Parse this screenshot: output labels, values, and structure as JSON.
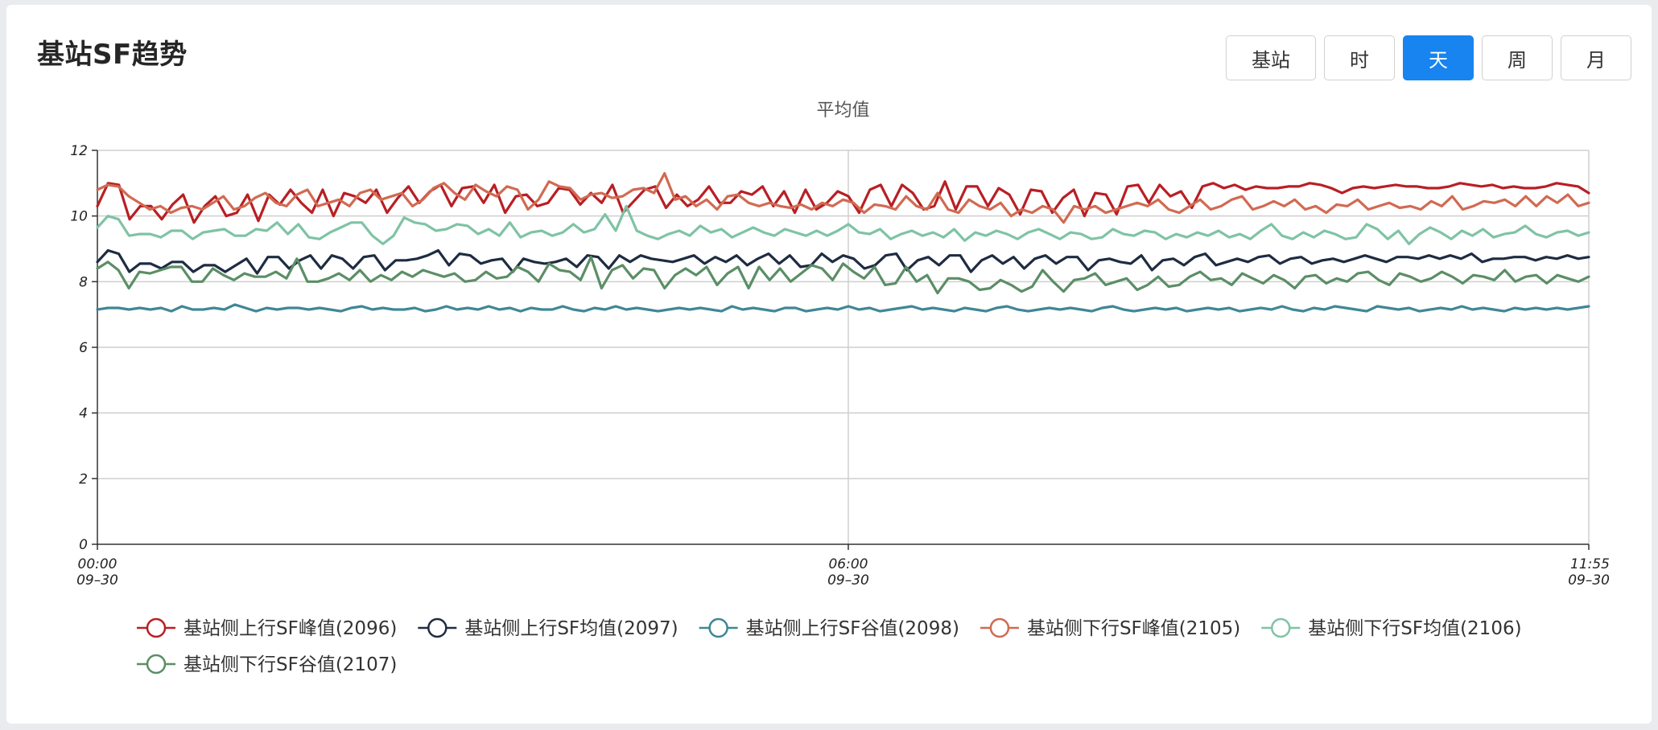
{
  "header": {
    "title": "基站SF趋势"
  },
  "toolbar": {
    "buttons": [
      {
        "label": "基站",
        "active": false
      },
      {
        "label": "时",
        "active": false
      },
      {
        "label": "天",
        "active": true
      },
      {
        "label": "周",
        "active": false
      },
      {
        "label": "月",
        "active": false
      }
    ]
  },
  "colors": {
    "accent": "#1784ef",
    "series": [
      "#b81f24",
      "#1e2c42",
      "#3f8796",
      "#d16a52",
      "#7fc3a5",
      "#5b8e66"
    ]
  },
  "chart_data": {
    "type": "line",
    "title": "平均值",
    "xlabel": "",
    "ylabel": "",
    "ylim": [
      0,
      12
    ],
    "yticks": [
      "0",
      "2",
      "4",
      "6",
      "8",
      "10",
      "12"
    ],
    "xticks": [
      {
        "line1": "00:00",
        "line2": "09–30"
      },
      {
        "line1": "06:00",
        "line2": "09–30"
      },
      {
        "line1": "11:55",
        "line2": "09–30"
      }
    ],
    "x_range": [
      "09-30 00:00",
      "09-30 11:55"
    ],
    "x_interval_minutes": 5,
    "grid": "horizontal plus vertical line at 06:00",
    "legend_position": "bottom",
    "series": [
      {
        "name": "基站侧上行SF峰值(2096)",
        "values": [
          10.3,
          11,
          10.95,
          9.9,
          10.3,
          10.3,
          9.9,
          10.35,
          10.65,
          9.8,
          10.3,
          10.6,
          10,
          10.1,
          10.65,
          9.85,
          10.65,
          10.35,
          10.8,
          10.4,
          10.1,
          10.8,
          10,
          10.7,
          10.6,
          10.4,
          10.8,
          10.1,
          10.55,
          10.9,
          10.4,
          10.75,
          10.95,
          10.3,
          10.85,
          10.9,
          10.4,
          10.95,
          10.1,
          10.6,
          10.65,
          10.3,
          10.4,
          10.85,
          10.8,
          10.35,
          10.7,
          10.4,
          10.95,
          10.1,
          10.45,
          10.8,
          10.9,
          10.25,
          10.65,
          10.3,
          10.5,
          10.9,
          10.4,
          10.4,
          10.75,
          10.65,
          10.9,
          10.3,
          10.75,
          10.1,
          10.8,
          10.2,
          10.4,
          10.75,
          10.6,
          10.1,
          10.8,
          10.95,
          10.3,
          10.95,
          10.7,
          10.2,
          10.3,
          11.05,
          10.2,
          10.9,
          10.9,
          10.3,
          10.85,
          10.65,
          10.05,
          10.8,
          10.75,
          10.1,
          10.55,
          10.8,
          10,
          10.7,
          10.65,
          10.05,
          10.9,
          10.95,
          10.4,
          10.95,
          10.6,
          10.75,
          10.25,
          10.9,
          11,
          10.85,
          10.95,
          10.8,
          10.9,
          10.85,
          10.85,
          10.9,
          10.9,
          11,
          10.95,
          10.85,
          10.7,
          10.85,
          10.9,
          10.85,
          10.9,
          10.95,
          10.9,
          10.9,
          10.85,
          10.85,
          10.9,
          11,
          10.95,
          10.9,
          10.95,
          10.85,
          10.9,
          10.85,
          10.85,
          10.9,
          11,
          10.95,
          10.9,
          10.7
        ]
      },
      {
        "name": "基站侧上行SF均值(2097)",
        "values": [
          8.6,
          8.95,
          8.85,
          8.3,
          8.55,
          8.55,
          8.4,
          8.6,
          8.6,
          8.3,
          8.5,
          8.5,
          8.3,
          8.5,
          8.7,
          8.25,
          8.75,
          8.75,
          8.4,
          8.65,
          8.8,
          8.4,
          8.8,
          8.7,
          8.4,
          8.75,
          8.8,
          8.35,
          8.65,
          8.65,
          8.7,
          8.8,
          8.95,
          8.5,
          8.85,
          8.8,
          8.55,
          8.65,
          8.7,
          8.3,
          8.7,
          8.6,
          8.55,
          8.6,
          8.7,
          8.45,
          8.8,
          8.75,
          8.4,
          8.8,
          8.6,
          8.8,
          8.7,
          8.65,
          8.6,
          8.7,
          8.8,
          8.55,
          8.75,
          8.6,
          8.8,
          8.5,
          8.7,
          8.85,
          8.55,
          8.8,
          8.45,
          8.5,
          8.85,
          8.6,
          8.8,
          8.7,
          8.4,
          8.5,
          8.8,
          8.85,
          8.35,
          8.65,
          8.75,
          8.5,
          8.8,
          8.8,
          8.3,
          8.65,
          8.8,
          8.55,
          8.75,
          8.4,
          8.7,
          8.8,
          8.55,
          8.75,
          8.75,
          8.35,
          8.65,
          8.7,
          8.6,
          8.55,
          8.8,
          8.35,
          8.65,
          8.7,
          8.5,
          8.75,
          8.85,
          8.5,
          8.6,
          8.7,
          8.6,
          8.75,
          8.8,
          8.55,
          8.7,
          8.75,
          8.55,
          8.65,
          8.7,
          8.6,
          8.7,
          8.8,
          8.7,
          8.6,
          8.75,
          8.75,
          8.7,
          8.8,
          8.7,
          8.8,
          8.7,
          8.85,
          8.6,
          8.7,
          8.7,
          8.75,
          8.75,
          8.65,
          8.75,
          8.7,
          8.8,
          8.7,
          8.75
        ]
      },
      {
        "name": "基站侧上行SF谷值(2098)",
        "values": [
          7.15,
          7.2,
          7.2,
          7.15,
          7.2,
          7.15,
          7.2,
          7.1,
          7.25,
          7.15,
          7.15,
          7.2,
          7.15,
          7.3,
          7.2,
          7.1,
          7.2,
          7.15,
          7.2,
          7.2,
          7.15,
          7.2,
          7.15,
          7.1,
          7.2,
          7.25,
          7.15,
          7.2,
          7.15,
          7.15,
          7.2,
          7.1,
          7.15,
          7.25,
          7.15,
          7.2,
          7.15,
          7.25,
          7.15,
          7.2,
          7.1,
          7.2,
          7.15,
          7.15,
          7.25,
          7.15,
          7.1,
          7.2,
          7.15,
          7.25,
          7.15,
          7.2,
          7.15,
          7.1,
          7.15,
          7.2,
          7.15,
          7.2,
          7.15,
          7.1,
          7.25,
          7.15,
          7.2,
          7.15,
          7.1,
          7.2,
          7.2,
          7.1,
          7.15,
          7.2,
          7.15,
          7.25,
          7.15,
          7.2,
          7.1,
          7.15,
          7.2,
          7.25,
          7.15,
          7.2,
          7.15,
          7.1,
          7.2,
          7.15,
          7.1,
          7.2,
          7.25,
          7.15,
          7.1,
          7.15,
          7.2,
          7.15,
          7.2,
          7.15,
          7.1,
          7.2,
          7.25,
          7.15,
          7.1,
          7.15,
          7.2,
          7.15,
          7.2,
          7.1,
          7.15,
          7.2,
          7.15,
          7.2,
          7.1,
          7.15,
          7.2,
          7.15,
          7.25,
          7.15,
          7.1,
          7.2,
          7.15,
          7.25,
          7.2,
          7.15,
          7.1,
          7.25,
          7.2,
          7.15,
          7.2,
          7.1,
          7.15,
          7.2,
          7.15,
          7.25,
          7.15,
          7.2,
          7.15,
          7.1,
          7.2,
          7.15,
          7.2,
          7.15,
          7.2,
          7.15,
          7.2,
          7.25
        ]
      },
      {
        "name": "基站侧下行SF峰值(2105)",
        "values": [
          10.8,
          10.95,
          10.9,
          10.6,
          10.4,
          10.2,
          10.3,
          10.1,
          10.25,
          10.3,
          10.2,
          10.4,
          10.6,
          10.2,
          10.3,
          10.55,
          10.7,
          10.4,
          10.3,
          10.65,
          10.8,
          10.3,
          10.4,
          10.5,
          10.3,
          10.7,
          10.8,
          10.5,
          10.6,
          10.7,
          10.3,
          10.5,
          10.85,
          11,
          10.7,
          10.5,
          10.95,
          10.75,
          10.6,
          10.9,
          10.8,
          10.2,
          10.5,
          11.05,
          10.9,
          10.85,
          10.5,
          10.65,
          10.7,
          10.55,
          10.6,
          10.8,
          10.85,
          10.7,
          11.3,
          10.5,
          10.6,
          10.3,
          10.5,
          10.2,
          10.6,
          10.65,
          10.4,
          10.3,
          10.4,
          10.3,
          10.25,
          10.35,
          10.2,
          10.4,
          10.3,
          10.5,
          10.4,
          10.1,
          10.35,
          10.3,
          10.2,
          10.6,
          10.3,
          10.2,
          10.7,
          10.2,
          10.1,
          10.5,
          10.3,
          10.2,
          10.4,
          10,
          10.2,
          10.1,
          10.3,
          10.2,
          9.8,
          10.3,
          10.2,
          10.3,
          10.1,
          10.2,
          10.3,
          10.4,
          10.3,
          10.5,
          10.2,
          10.1,
          10.3,
          10.5,
          10.2,
          10.3,
          10.5,
          10.6,
          10.2,
          10.3,
          10.45,
          10.3,
          10.5,
          10.2,
          10.3,
          10.1,
          10.35,
          10.3,
          10.5,
          10.2,
          10.3,
          10.4,
          10.25,
          10.3,
          10.2,
          10.45,
          10.3,
          10.6,
          10.2,
          10.3,
          10.45,
          10.4,
          10.5,
          10.3,
          10.6,
          10.3,
          10.6,
          10.4,
          10.65,
          10.3,
          10.4
        ]
      },
      {
        "name": "基站侧下行SF均值(2106)",
        "values": [
          9.65,
          10,
          9.9,
          9.4,
          9.45,
          9.45,
          9.35,
          9.55,
          9.55,
          9.3,
          9.5,
          9.55,
          9.6,
          9.4,
          9.4,
          9.6,
          9.55,
          9.8,
          9.45,
          9.75,
          9.35,
          9.3,
          9.5,
          9.65,
          9.8,
          9.8,
          9.4,
          9.15,
          9.4,
          9.95,
          9.8,
          9.75,
          9.55,
          9.6,
          9.75,
          9.7,
          9.45,
          9.6,
          9.4,
          9.8,
          9.35,
          9.5,
          9.55,
          9.4,
          9.5,
          9.75,
          9.5,
          9.6,
          10.05,
          9.55,
          10.3,
          9.55,
          9.4,
          9.3,
          9.45,
          9.55,
          9.4,
          9.7,
          9.5,
          9.6,
          9.35,
          9.5,
          9.65,
          9.5,
          9.4,
          9.6,
          9.5,
          9.4,
          9.55,
          9.4,
          9.55,
          9.75,
          9.5,
          9.45,
          9.6,
          9.3,
          9.45,
          9.55,
          9.4,
          9.5,
          9.35,
          9.6,
          9.25,
          9.5,
          9.4,
          9.55,
          9.45,
          9.3,
          9.5,
          9.6,
          9.45,
          9.3,
          9.5,
          9.45,
          9.3,
          9.35,
          9.6,
          9.45,
          9.4,
          9.55,
          9.5,
          9.3,
          9.45,
          9.35,
          9.5,
          9.4,
          9.55,
          9.35,
          9.45,
          9.3,
          9.55,
          9.75,
          9.4,
          9.3,
          9.5,
          9.35,
          9.55,
          9.45,
          9.3,
          9.35,
          9.75,
          9.6,
          9.3,
          9.55,
          9.15,
          9.45,
          9.65,
          9.5,
          9.3,
          9.55,
          9.4,
          9.6,
          9.35,
          9.45,
          9.5,
          9.7,
          9.45,
          9.35,
          9.5,
          9.55,
          9.4,
          9.5
        ]
      },
      {
        "name": "基站侧下行SF谷值(2107)",
        "values": [
          8.4,
          8.6,
          8.35,
          7.8,
          8.3,
          8.25,
          8.35,
          8.45,
          8.45,
          8,
          8,
          8.4,
          8.2,
          8.05,
          8.25,
          8.15,
          8.15,
          8.3,
          8.1,
          8.7,
          8,
          8,
          8.1,
          8.25,
          8.05,
          8.35,
          8,
          8.2,
          8.05,
          8.3,
          8.15,
          8.35,
          8.25,
          8.15,
          8.25,
          8,
          8.05,
          8.3,
          8.1,
          8.15,
          8.45,
          8.3,
          8,
          8.55,
          8.35,
          8.3,
          8.05,
          8.75,
          7.8,
          8.35,
          8.5,
          8.1,
          8.4,
          8.35,
          7.8,
          8.2,
          8.4,
          8.2,
          8.45,
          7.9,
          8.25,
          8.45,
          7.8,
          8.45,
          8.05,
          8.4,
          8,
          8.25,
          8.5,
          8.4,
          8.05,
          8.55,
          8.3,
          8.1,
          8.45,
          7.9,
          7.95,
          8.45,
          8,
          8.2,
          7.65,
          8.1,
          8.1,
          8.0,
          7.75,
          7.8,
          8.05,
          7.9,
          7.7,
          7.85,
          8.35,
          8.0,
          7.7,
          8.05,
          8.1,
          8.25,
          7.9,
          8.0,
          8.1,
          7.75,
          7.9,
          8.15,
          7.85,
          7.9,
          8.15,
          8.3,
          8.05,
          8.1,
          7.9,
          8.25,
          8.1,
          7.95,
          8.2,
          8.05,
          7.8,
          8.15,
          8.2,
          7.95,
          8.1,
          8.0,
          8.25,
          8.3,
          8.05,
          7.9,
          8.25,
          8.15,
          8.0,
          8.1,
          8.3,
          8.15,
          7.95,
          8.2,
          8.15,
          8.05,
          8.35,
          8.0,
          8.15,
          8.2,
          7.95,
          8.2,
          8.1,
          8.0,
          8.15
        ]
      }
    ]
  }
}
